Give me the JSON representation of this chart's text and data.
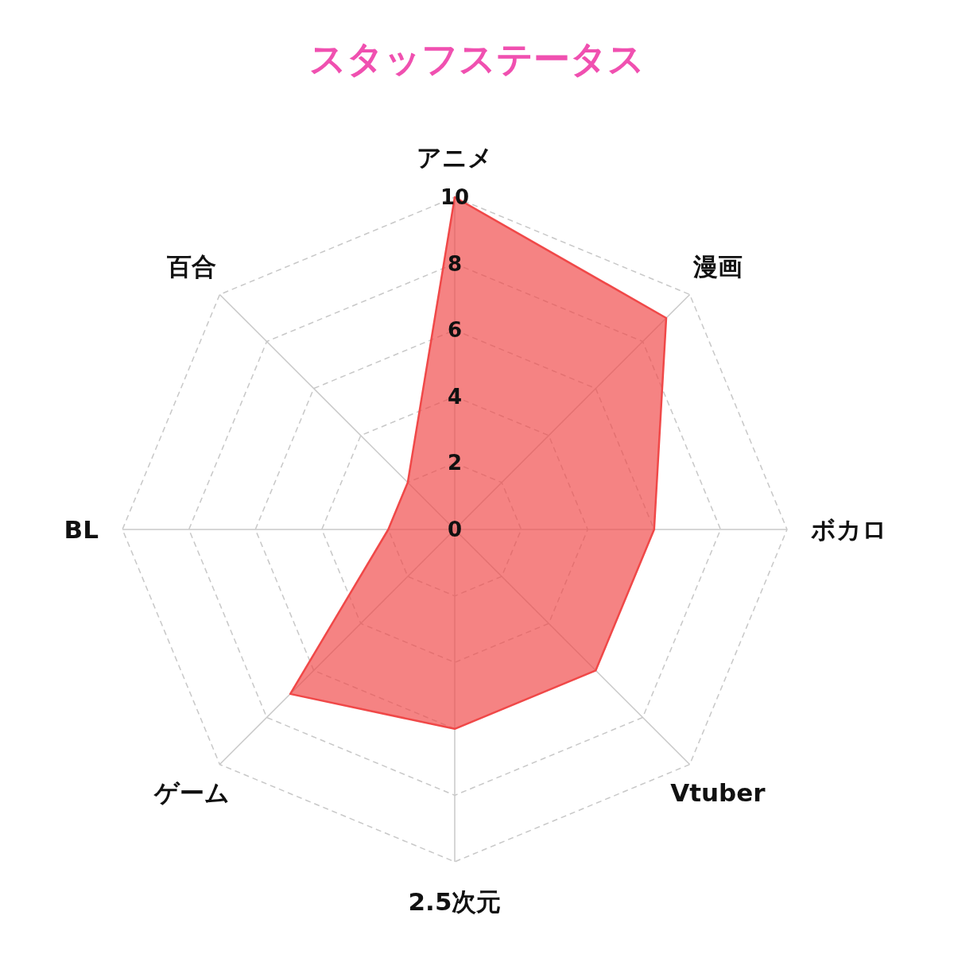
{
  "chart_data": {
    "type": "radar",
    "title": "スタッフステータス",
    "categories": [
      "アニメ",
      "漫画",
      "ボカロ",
      "Vtuber",
      "2.5次元",
      "ゲーム",
      "BL",
      "百合"
    ],
    "series": [
      {
        "color": "#f04848",
        "values": [
          10,
          9,
          6,
          6,
          6,
          7,
          2,
          2
        ]
      }
    ],
    "ylim": [
      0,
      10
    ],
    "yticks": [
      0,
      2,
      4,
      6,
      8,
      10
    ],
    "grid": true
  }
}
